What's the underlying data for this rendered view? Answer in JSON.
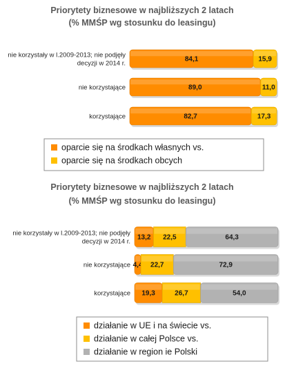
{
  "chart_data": [
    {
      "type": "bar",
      "orientation": "horizontal",
      "stacked": true,
      "percent_stacked": true,
      "title": "Priorytety biznesowe w najbliższych 2 latach",
      "subtitle": "(% MMŚP wg stosunku do leasingu)",
      "categories": [
        [
          "nie korzystały w l.2009-2013; nie podjęły",
          "decyzji w 2014 r."
        ],
        [
          "nie korzystające"
        ],
        [
          "korzystające"
        ]
      ],
      "series": [
        {
          "name": "oparcie się na środkach własnych    vs.",
          "color": "#ff8c00",
          "values": [
            84.1,
            89.0,
            82.7
          ],
          "labels": [
            "84,1",
            "89,0",
            "82,7"
          ]
        },
        {
          "name": "oparcie się na środkach obcych",
          "color": "#ffc000",
          "values": [
            15.9,
            11.0,
            17.3
          ],
          "labels": [
            "15,9",
            "11,0",
            "17,3"
          ]
        }
      ],
      "legend_position": "bottom"
    },
    {
      "type": "bar",
      "orientation": "horizontal",
      "stacked": true,
      "percent_stacked": true,
      "title": "Priorytety biznesowe w najbliższych 2 latach",
      "subtitle": "(% MMŚP wg stosunku do leasingu)",
      "categories": [
        [
          "nie korzystały w l.2009-2013; nie podjęły",
          "decyzji w 2014 r."
        ],
        [
          "nie korzystające"
        ],
        [
          "korzystające"
        ]
      ],
      "series": [
        {
          "name": "działanie  w UE i na świecie   vs.",
          "color": "#ff8c00",
          "values": [
            13.2,
            4.4,
            19.3
          ],
          "labels": [
            "13,2",
            "4,4",
            "19,3"
          ]
        },
        {
          "name": "działanie w całej Polsce   vs.",
          "color": "#ffc000",
          "values": [
            22.5,
            22.7,
            26.7
          ],
          "labels": [
            "22,5",
            "22,7",
            "26,7"
          ]
        },
        {
          "name": "działanie w region ie Polski",
          "color": "#b2b2b2",
          "values": [
            64.3,
            72.9,
            54.0
          ],
          "labels": [
            "64,3",
            "72,9",
            "54,0"
          ]
        }
      ],
      "legend_position": "bottom"
    }
  ]
}
